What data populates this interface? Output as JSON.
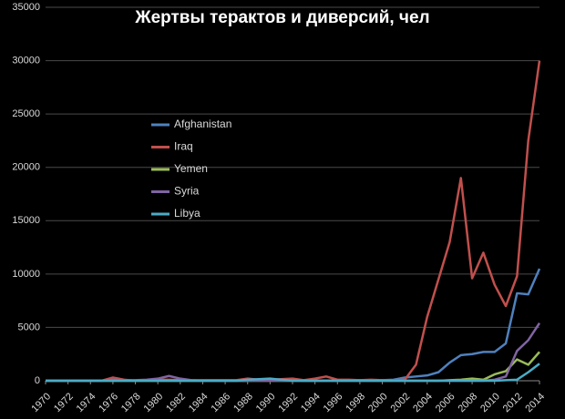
{
  "chart_data": {
    "type": "line",
    "title": "Жертвы терактов и диверсий, чел",
    "x": [
      1970,
      1971,
      1972,
      1973,
      1974,
      1975,
      1976,
      1977,
      1978,
      1979,
      1980,
      1981,
      1982,
      1983,
      1984,
      1985,
      1986,
      1987,
      1988,
      1989,
      1990,
      1991,
      1992,
      1993,
      1994,
      1995,
      1996,
      1997,
      1998,
      1999,
      2000,
      2001,
      2002,
      2003,
      2004,
      2005,
      2006,
      2007,
      2008,
      2009,
      2010,
      2011,
      2012,
      2013,
      2014
    ],
    "series": [
      {
        "name": "Afghanistan",
        "color": "#4f81bd",
        "values": [
          0,
          0,
          0,
          0,
          0,
          0,
          0,
          0,
          0,
          0,
          0,
          0,
          0,
          0,
          0,
          0,
          0,
          0,
          0,
          50,
          100,
          50,
          50,
          0,
          0,
          0,
          50,
          50,
          50,
          50,
          50,
          100,
          300,
          400,
          500,
          800,
          1700,
          2400,
          2500,
          2700,
          2700,
          3500,
          8200,
          8100,
          10500
        ]
      },
      {
        "name": "Iraq",
        "color": "#c0504d",
        "values": [
          0,
          0,
          0,
          0,
          0,
          0,
          300,
          100,
          0,
          50,
          100,
          100,
          50,
          50,
          50,
          50,
          50,
          50,
          200,
          100,
          100,
          150,
          200,
          50,
          200,
          400,
          100,
          100,
          50,
          100,
          50,
          50,
          100,
          1500,
          6000,
          9500,
          13000,
          19000,
          9600,
          12000,
          9000,
          7000,
          9800,
          22500,
          30000
        ]
      },
      {
        "name": "Yemen",
        "color": "#9bbb59",
        "values": [
          0,
          0,
          0,
          0,
          0,
          0,
          0,
          0,
          0,
          0,
          0,
          0,
          0,
          0,
          0,
          0,
          0,
          0,
          0,
          0,
          0,
          0,
          0,
          0,
          0,
          0,
          0,
          0,
          0,
          0,
          0,
          0,
          0,
          0,
          0,
          0,
          50,
          100,
          200,
          100,
          600,
          900,
          2000,
          1500,
          2700
        ]
      },
      {
        "name": "Syria",
        "color": "#8064a2",
        "values": [
          0,
          0,
          0,
          0,
          0,
          0,
          100,
          50,
          50,
          100,
          200,
          450,
          200,
          50,
          0,
          0,
          0,
          0,
          0,
          0,
          0,
          0,
          0,
          0,
          0,
          0,
          0,
          0,
          0,
          0,
          0,
          0,
          0,
          0,
          0,
          0,
          0,
          0,
          0,
          0,
          100,
          400,
          2800,
          3800,
          5400
        ]
      },
      {
        "name": "Libya",
        "color": "#4bacc6",
        "values": [
          0,
          0,
          0,
          0,
          0,
          0,
          0,
          0,
          0,
          0,
          0,
          0,
          0,
          0,
          0,
          0,
          0,
          0,
          100,
          150,
          200,
          100,
          0,
          0,
          0,
          0,
          0,
          0,
          0,
          0,
          0,
          0,
          0,
          0,
          0,
          0,
          0,
          0,
          0,
          0,
          0,
          50,
          100,
          800,
          1600
        ]
      }
    ],
    "xlim": [
      1970,
      2014
    ],
    "xticks": [
      1970,
      1972,
      1974,
      1976,
      1978,
      1980,
      1982,
      1984,
      1986,
      1988,
      1990,
      1992,
      1994,
      1996,
      1998,
      2000,
      2002,
      2004,
      2006,
      2008,
      2010,
      2012,
      2014
    ],
    "ylim": [
      0,
      35000
    ],
    "yticks": [
      0,
      5000,
      10000,
      15000,
      20000,
      25000,
      30000,
      35000
    ],
    "grid": true
  }
}
